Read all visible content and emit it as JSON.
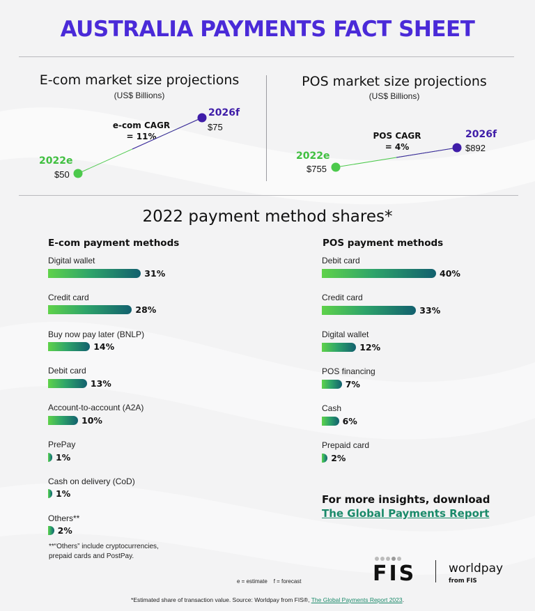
{
  "page_title": "AUSTRALIA PAYMENTS FACT SHEET",
  "ecom_projection": {
    "title": "E-com market size projections",
    "subtitle": "(US$ Billions)",
    "cagr_label": "e-com CAGR",
    "cagr_value": "= 11%",
    "start_year": "2022e",
    "start_value": "$50",
    "end_year": "2026f",
    "end_value": "$75",
    "start_color": "#4cc94c",
    "end_color": "#3f1da8"
  },
  "pos_projection": {
    "title": "POS market size projections",
    "subtitle": "(US$ Billions)",
    "cagr_label": "POS CAGR",
    "cagr_value": "= 4%",
    "start_year": "2022e",
    "start_value": "$755",
    "end_year": "2026f",
    "end_value": "$892",
    "start_color": "#4cc94c",
    "end_color": "#3f1da8"
  },
  "shares_title": "2022 payment method shares*",
  "ecom_methods": {
    "title": "E-com payment methods",
    "items": [
      {
        "label": "Digital wallet",
        "value": 31,
        "display": "31%"
      },
      {
        "label": "Credit card",
        "value": 28,
        "display": "28%"
      },
      {
        "label": "Buy now pay later (BNLP)",
        "value": 14,
        "display": "14%"
      },
      {
        "label": "Debit card",
        "value": 13,
        "display": "13%"
      },
      {
        "label": "Account-to-account (A2A)",
        "value": 10,
        "display": "10%"
      },
      {
        "label": "PrePay",
        "value": 1,
        "display": "1%"
      },
      {
        "label": "Cash on delivery (CoD)",
        "value": 1,
        "display": "1%"
      },
      {
        "label": "Others**",
        "value": 2,
        "display": "2%"
      }
    ]
  },
  "pos_methods": {
    "title": "POS payment methods",
    "items": [
      {
        "label": "Debit card",
        "value": 40,
        "display": "40%"
      },
      {
        "label": "Credit card",
        "value": 33,
        "display": "33%"
      },
      {
        "label": "Digital wallet",
        "value": 12,
        "display": "12%"
      },
      {
        "label": "POS financing",
        "value": 7,
        "display": "7%"
      },
      {
        "label": "Cash",
        "value": 6,
        "display": "6%"
      },
      {
        "label": "Prepaid card",
        "value": 2,
        "display": "2%"
      }
    ]
  },
  "others_note_line1": "**“Others” include cryptocurrencies,",
  "others_note_line2": "prepaid cards and PostPay.",
  "insights_text": "For more insights, download",
  "insights_link": "The Global Payments Report",
  "legend_estimate": "e = estimate",
  "legend_forecast": "f = forecast",
  "logo_fis": "FIS",
  "logo_worldpay": "worldpay",
  "logo_worldpay_sub": "from FIS",
  "footer_text": "*Estimated share of transaction value. Source: Worldpay from FIS®, ",
  "footer_link": "The Global Payments Report 2023",
  "footer_end": ".",
  "colors": {
    "title": "#4a2ad8",
    "bar_start": "#5fd24a",
    "bar_end": "#12606e",
    "link": "#1a8a6a"
  }
}
